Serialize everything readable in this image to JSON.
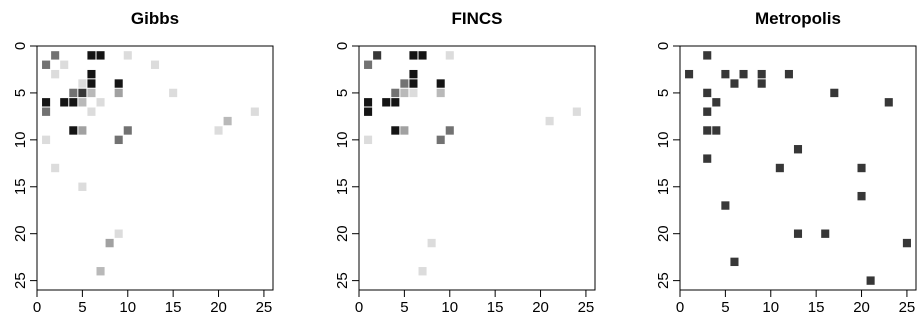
{
  "chart_data": [
    {
      "type": "heatmap",
      "title": "Gibbs",
      "xlim": [
        0,
        26
      ],
      "ylim": [
        26,
        0
      ],
      "x_ticks": [
        "0",
        "5",
        "10",
        "15",
        "20",
        "25"
      ],
      "y_ticks": [
        "0",
        "5",
        "10",
        "15",
        "20",
        "25"
      ],
      "cells": [
        {
          "x": 2,
          "y": 1,
          "v": 0.6
        },
        {
          "x": 6,
          "y": 1,
          "v": 1.0
        },
        {
          "x": 7,
          "y": 1,
          "v": 1.0
        },
        {
          "x": 10,
          "y": 1,
          "v": 0.15
        },
        {
          "x": 1,
          "y": 2,
          "v": 0.6
        },
        {
          "x": 3,
          "y": 2,
          "v": 0.15
        },
        {
          "x": 13,
          "y": 2,
          "v": 0.15
        },
        {
          "x": 2,
          "y": 3,
          "v": 0.15
        },
        {
          "x": 6,
          "y": 3,
          "v": 1.0
        },
        {
          "x": 5,
          "y": 4,
          "v": 0.15
        },
        {
          "x": 6,
          "y": 4,
          "v": 1.0
        },
        {
          "x": 9,
          "y": 4,
          "v": 1.0
        },
        {
          "x": 4,
          "y": 5,
          "v": 0.6
        },
        {
          "x": 5,
          "y": 5,
          "v": 0.85
        },
        {
          "x": 6,
          "y": 5,
          "v": 0.3
        },
        {
          "x": 9,
          "y": 5,
          "v": 0.4
        },
        {
          "x": 15,
          "y": 5,
          "v": 0.15
        },
        {
          "x": 1,
          "y": 6,
          "v": 1.0
        },
        {
          "x": 3,
          "y": 6,
          "v": 1.0
        },
        {
          "x": 4,
          "y": 6,
          "v": 1.0
        },
        {
          "x": 5,
          "y": 6,
          "v": 0.3
        },
        {
          "x": 7,
          "y": 6,
          "v": 0.15
        },
        {
          "x": 1,
          "y": 7,
          "v": 0.6
        },
        {
          "x": 6,
          "y": 7,
          "v": 0.15
        },
        {
          "x": 24,
          "y": 7,
          "v": 0.15
        },
        {
          "x": 21,
          "y": 8,
          "v": 0.3
        },
        {
          "x": 4,
          "y": 9,
          "v": 1.0
        },
        {
          "x": 5,
          "y": 9,
          "v": 0.4
        },
        {
          "x": 10,
          "y": 9,
          "v": 0.6
        },
        {
          "x": 20,
          "y": 9,
          "v": 0.15
        },
        {
          "x": 1,
          "y": 10,
          "v": 0.15
        },
        {
          "x": 9,
          "y": 10,
          "v": 0.6
        },
        {
          "x": 2,
          "y": 13,
          "v": 0.15
        },
        {
          "x": 5,
          "y": 15,
          "v": 0.15
        },
        {
          "x": 9,
          "y": 20,
          "v": 0.15
        },
        {
          "x": 8,
          "y": 21,
          "v": 0.4
        },
        {
          "x": 7,
          "y": 24,
          "v": 0.3
        }
      ]
    },
    {
      "type": "heatmap",
      "title": "FINCS",
      "xlim": [
        0,
        26
      ],
      "ylim": [
        26,
        0
      ],
      "x_ticks": [
        "0",
        "5",
        "10",
        "15",
        "20",
        "25"
      ],
      "y_ticks": [
        "0",
        "5",
        "10",
        "15",
        "20",
        "25"
      ],
      "cells": [
        {
          "x": 2,
          "y": 1,
          "v": 0.85
        },
        {
          "x": 6,
          "y": 1,
          "v": 1.0
        },
        {
          "x": 7,
          "y": 1,
          "v": 1.0
        },
        {
          "x": 10,
          "y": 1,
          "v": 0.15
        },
        {
          "x": 1,
          "y": 2,
          "v": 0.6
        },
        {
          "x": 6,
          "y": 3,
          "v": 1.0
        },
        {
          "x": 5,
          "y": 4,
          "v": 0.6
        },
        {
          "x": 6,
          "y": 4,
          "v": 1.0
        },
        {
          "x": 9,
          "y": 4,
          "v": 1.0
        },
        {
          "x": 4,
          "y": 5,
          "v": 0.6
        },
        {
          "x": 5,
          "y": 5,
          "v": 0.3
        },
        {
          "x": 6,
          "y": 5,
          "v": 0.15
        },
        {
          "x": 9,
          "y": 5,
          "v": 0.3
        },
        {
          "x": 1,
          "y": 6,
          "v": 1.0
        },
        {
          "x": 3,
          "y": 6,
          "v": 1.0
        },
        {
          "x": 4,
          "y": 6,
          "v": 1.0
        },
        {
          "x": 1,
          "y": 7,
          "v": 1.0
        },
        {
          "x": 21,
          "y": 8,
          "v": 0.15
        },
        {
          "x": 24,
          "y": 7,
          "v": 0.15
        },
        {
          "x": 4,
          "y": 9,
          "v": 1.0
        },
        {
          "x": 5,
          "y": 9,
          "v": 0.4
        },
        {
          "x": 10,
          "y": 9,
          "v": 0.6
        },
        {
          "x": 1,
          "y": 10,
          "v": 0.15
        },
        {
          "x": 9,
          "y": 10,
          "v": 0.6
        },
        {
          "x": 8,
          "y": 21,
          "v": 0.15
        },
        {
          "x": 7,
          "y": 24,
          "v": 0.15
        }
      ]
    },
    {
      "type": "heatmap",
      "title": "Metropolis",
      "xlim": [
        0,
        26
      ],
      "ylim": [
        26,
        0
      ],
      "x_ticks": [
        "0",
        "5",
        "10",
        "15",
        "20",
        "25"
      ],
      "y_ticks": [
        "0",
        "5",
        "10",
        "15",
        "20",
        "25"
      ],
      "cells": [
        {
          "x": 3,
          "y": 1,
          "v": 0.85
        },
        {
          "x": 1,
          "y": 3,
          "v": 0.85
        },
        {
          "x": 5,
          "y": 3,
          "v": 0.85
        },
        {
          "x": 7,
          "y": 3,
          "v": 0.85
        },
        {
          "x": 9,
          "y": 3,
          "v": 0.85
        },
        {
          "x": 12,
          "y": 3,
          "v": 0.85
        },
        {
          "x": 6,
          "y": 4,
          "v": 0.85
        },
        {
          "x": 9,
          "y": 4,
          "v": 0.85
        },
        {
          "x": 3,
          "y": 5,
          "v": 0.85
        },
        {
          "x": 17,
          "y": 5,
          "v": 0.85
        },
        {
          "x": 4,
          "y": 6,
          "v": 0.85
        },
        {
          "x": 23,
          "y": 6,
          "v": 0.85
        },
        {
          "x": 3,
          "y": 7,
          "v": 0.85
        },
        {
          "x": 3,
          "y": 9,
          "v": 0.85
        },
        {
          "x": 4,
          "y": 9,
          "v": 0.85
        },
        {
          "x": 13,
          "y": 11,
          "v": 0.85
        },
        {
          "x": 3,
          "y": 12,
          "v": 0.85
        },
        {
          "x": 11,
          "y": 13,
          "v": 0.85
        },
        {
          "x": 20,
          "y": 13,
          "v": 0.85
        },
        {
          "x": 20,
          "y": 16,
          "v": 0.85
        },
        {
          "x": 5,
          "y": 17,
          "v": 0.85
        },
        {
          "x": 13,
          "y": 20,
          "v": 0.85
        },
        {
          "x": 16,
          "y": 20,
          "v": 0.85
        },
        {
          "x": 25,
          "y": 21,
          "v": 0.85
        },
        {
          "x": 6,
          "y": 23,
          "v": 0.85
        },
        {
          "x": 21,
          "y": 25,
          "v": 0.85
        }
      ]
    }
  ]
}
